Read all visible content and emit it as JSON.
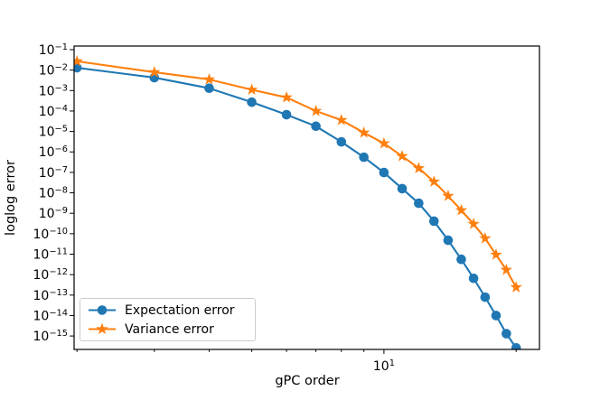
{
  "figure": {
    "background": "#ffffff",
    "spine_color": "#000000",
    "tick_color": "#000000"
  },
  "legend": {
    "position": "lower left",
    "border_color": "#cccccc",
    "background": "rgba(255,255,255,0.8)"
  },
  "chart_data": {
    "type": "line",
    "title": "",
    "xlabel": "gPC order",
    "ylabel": "loglog error",
    "x_scale": "log",
    "y_scale": "log",
    "grid": false,
    "legend_position": "lower left",
    "xlim": [
      1.97,
      22.6
    ],
    "ylim": [
      2.2e-16,
      0.15
    ],
    "x": [
      2,
      3,
      4,
      5,
      6,
      7,
      8,
      9,
      10,
      11,
      12,
      13,
      14,
      15,
      16,
      17,
      18,
      19,
      20
    ],
    "x_major_ticks": [
      10
    ],
    "x_minor_ticks": [
      2,
      3,
      4,
      5,
      6,
      7,
      8,
      9,
      20
    ],
    "y_tick_exponents": [
      -1,
      -2,
      -3,
      -4,
      -5,
      -6,
      -7,
      -8,
      -9,
      -10,
      -11,
      -12,
      -13,
      -14,
      -15
    ],
    "series": [
      {
        "name": "Expectation error",
        "color": "#1f77b4",
        "marker": "circle",
        "values": [
          0.013,
          0.0043,
          0.0013,
          0.00027,
          6.6e-05,
          1.8e-05,
          3.1e-06,
          5.5e-07,
          9.8e-08,
          1.6e-08,
          3.1e-09,
          4.1e-10,
          4.8e-11,
          5.6e-12,
          6.6e-13,
          7.9e-14,
          1e-14,
          1.3e-15,
          2.6e-16
        ]
      },
      {
        "name": "Variance error",
        "color": "#ff7f0e",
        "marker": "star",
        "values": [
          0.027,
          0.0079,
          0.0035,
          0.0011,
          0.00046,
          0.0001,
          3.6e-05,
          8.7e-06,
          2.6e-06,
          6.2e-07,
          1.6e-07,
          3.5e-08,
          7e-09,
          1.4e-09,
          3e-10,
          5.9e-11,
          9.4e-12,
          1.7e-12,
          2.4e-13
        ]
      }
    ]
  }
}
